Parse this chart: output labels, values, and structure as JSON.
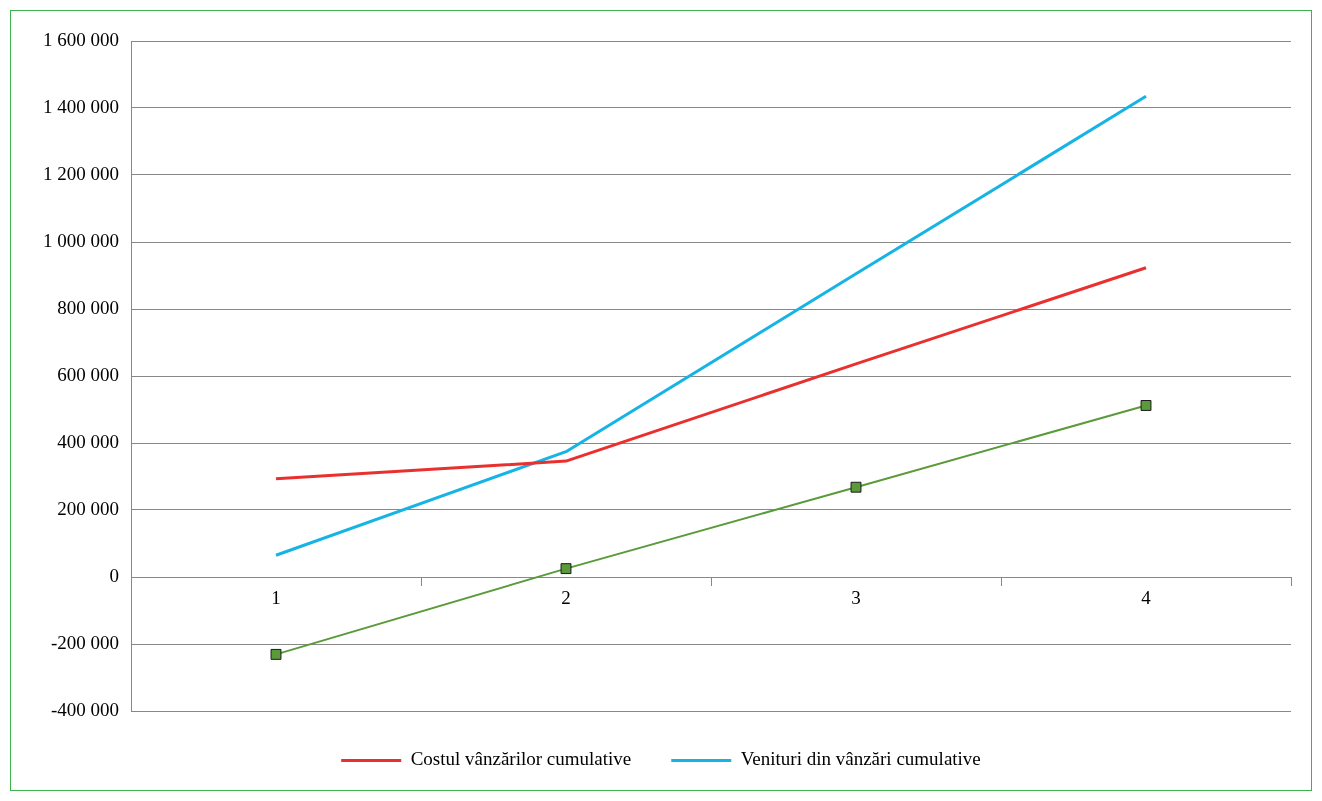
{
  "chart_data": {
    "type": "line",
    "categories": [
      "1",
      "2",
      "3",
      "4"
    ],
    "series": [
      {
        "name": "Costul vânzărilor cumulative",
        "color": "#e8312f",
        "values": [
          293000,
          346000,
          636000,
          923000
        ],
        "marker": "none"
      },
      {
        "name": "Venituri din vânzări cumulative",
        "color": "#16b4e4",
        "values": [
          65000,
          374000,
          905000,
          1435000
        ],
        "marker": "none"
      },
      {
        "color": "#5b9a3a",
        "values": [
          -231000,
          25000,
          268000,
          512000
        ],
        "marker": "square"
      }
    ],
    "ylim": [
      -400000,
      1600000
    ],
    "yticks": [
      -400000,
      -200000,
      0,
      200000,
      400000,
      600000,
      800000,
      1000000,
      1200000,
      1400000,
      1600000
    ],
    "grid": "y",
    "legend": "bottom",
    "line_style": "solid"
  }
}
